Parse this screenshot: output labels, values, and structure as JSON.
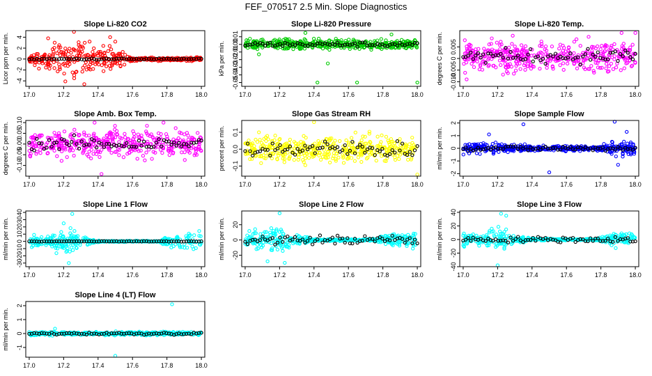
{
  "figure": {
    "title": "FEF_070517  2.5 Min. Slope Diagnostics"
  },
  "chart_data": [
    {
      "type": "scatter",
      "title": "Slope Li-820 CO2",
      "ylabel": "Licor ppm per min.",
      "color": "#ff0000",
      "xlim": [
        16.98,
        18.02
      ],
      "ylim": [
        -5,
        5.2
      ],
      "xticks": [
        17.0,
        17.2,
        17.4,
        17.6,
        17.8,
        18.0
      ],
      "yticks": [
        -4,
        -2,
        0,
        2,
        4
      ],
      "ytick_labels": [
        "-4",
        "-2",
        "0",
        "2",
        "4"
      ],
      "spread": [
        {
          "x": 17.0,
          "s": 0.3
        },
        {
          "x": 17.05,
          "s": 1.2
        },
        {
          "x": 17.15,
          "s": 2.4
        },
        {
          "x": 17.25,
          "s": 2.6
        },
        {
          "x": 17.35,
          "s": 2.0
        },
        {
          "x": 17.45,
          "s": 1.8
        },
        {
          "x": 17.55,
          "s": 1.2
        },
        {
          "x": 17.6,
          "s": 0.25
        },
        {
          "x": 18.0,
          "s": 0.25
        }
      ],
      "black_spread": 0.12,
      "outliers": [
        [
          17.26,
          5.0
        ],
        [
          17.32,
          -4.6
        ],
        [
          17.21,
          -4.1
        ],
        [
          17.11,
          3.8
        ],
        [
          17.47,
          4.0
        ],
        [
          17.5,
          3.2
        ]
      ]
    },
    {
      "type": "scatter",
      "title": "Slope Li-820 Pressure",
      "ylabel": "kPa per min.",
      "color": "#00cc00",
      "xlim": [
        16.98,
        18.02
      ],
      "ylim": [
        -0.055,
        0.018
      ],
      "xticks": [
        17.0,
        17.2,
        17.4,
        17.6,
        17.8,
        18.0
      ],
      "yticks": [
        -0.05,
        -0.04,
        -0.03,
        -0.02,
        -0.01,
        0.0,
        0.01
      ],
      "ytick_labels": [
        "-0.05",
        "-0.04",
        "-0.03",
        "-0.02",
        "-0.01",
        "0.00",
        "0.01"
      ],
      "spread": [
        {
          "x": 17.0,
          "s": 0.005
        },
        {
          "x": 18.0,
          "s": 0.005
        }
      ],
      "black_spread": 0.003,
      "outliers": [
        [
          17.35,
          0.015
        ],
        [
          17.42,
          -0.05
        ],
        [
          17.48,
          -0.025
        ],
        [
          17.65,
          -0.05
        ],
        [
          17.85,
          0.013
        ],
        [
          18.0,
          -0.05
        ],
        [
          17.08,
          -0.013
        ]
      ]
    },
    {
      "type": "scatter",
      "title": "Slope Li-820 Temp.",
      "ylabel": "degrees C per min.",
      "color": "#ff00ff",
      "xlim": [
        16.98,
        18.02
      ],
      "ylim": [
        -0.012,
        0.012
      ],
      "xticks": [
        17.0,
        17.2,
        17.4,
        17.6,
        17.8,
        18.0
      ],
      "yticks": [
        -0.01,
        -0.005,
        0.0,
        0.005
      ],
      "ytick_labels": [
        "-0.010",
        "-0.005",
        "0",
        "0.005"
      ],
      "spread": [
        {
          "x": 17.0,
          "s": 0.005
        },
        {
          "x": 18.0,
          "s": 0.005
        }
      ],
      "center": 0.001,
      "black_spread": 0.003,
      "outliers": [
        [
          18.0,
          0.011
        ],
        [
          17.92,
          0.011
        ],
        [
          17.02,
          -0.009
        ]
      ]
    },
    {
      "type": "scatter",
      "title": "Slope Amb. Box Temp.",
      "ylabel": "degrees C per min.",
      "color": "#ff00ff",
      "xlim": [
        16.98,
        18.02
      ],
      "ylim": [
        -0.15,
        0.11
      ],
      "xticks": [
        17.0,
        17.2,
        17.4,
        17.6,
        17.8,
        18.0
      ],
      "yticks": [
        -0.1,
        -0.05,
        0.0,
        0.05,
        0.1
      ],
      "ytick_labels": [
        "-0.10",
        "-0.05",
        "0.00",
        "0.05",
        "0.10"
      ],
      "spread": [
        {
          "x": 17.0,
          "s": 0.05
        },
        {
          "x": 18.0,
          "s": 0.05
        }
      ],
      "black_spread": 0.03,
      "outliers": [
        [
          17.78,
          0.1
        ],
        [
          17.42,
          -0.14
        ],
        [
          17.38,
          0.1
        ]
      ]
    },
    {
      "type": "scatter",
      "title": "Slope Gas Stream RH",
      "ylabel": "percent per min.",
      "color": "#ffff00",
      "xlim": [
        16.98,
        18.02
      ],
      "ylim": [
        -0.16,
        0.17
      ],
      "xticks": [
        17.0,
        17.2,
        17.4,
        17.6,
        17.8,
        18.0
      ],
      "yticks": [
        -0.1,
        0.0,
        0.1
      ],
      "ytick_labels": [
        "-0.1",
        "0.0",
        "0.1"
      ],
      "spread": [
        {
          "x": 17.0,
          "s": 0.06
        },
        {
          "x": 18.0,
          "s": 0.06
        }
      ],
      "black_spread": 0.05,
      "outliers": [
        [
          17.4,
          0.16
        ],
        [
          18.0,
          -0.15
        ],
        [
          17.08,
          0.1
        ]
      ]
    },
    {
      "type": "scatter",
      "title": "Slope Sample Flow",
      "ylabel": "ml/min per min.",
      "color": "#0000ff",
      "xlim": [
        16.98,
        18.02
      ],
      "ylim": [
        -2.2,
        2.2
      ],
      "xticks": [
        17.0,
        17.2,
        17.4,
        17.6,
        17.8,
        18.0
      ],
      "yticks": [
        -2,
        -1,
        0,
        1,
        2
      ],
      "ytick_labels": [
        "-2",
        "-1",
        "0",
        "1",
        "2"
      ],
      "spread": [
        {
          "x": 17.0,
          "s": 0.4
        },
        {
          "x": 17.2,
          "s": 0.3
        },
        {
          "x": 17.4,
          "s": 0.15
        },
        {
          "x": 17.8,
          "s": 0.15
        },
        {
          "x": 17.9,
          "s": 0.5
        },
        {
          "x": 18.0,
          "s": 0.5
        }
      ],
      "black_spread": 0.2,
      "outliers": [
        [
          17.35,
          1.9
        ],
        [
          17.88,
          2.1
        ],
        [
          17.5,
          -1.9
        ],
        [
          17.9,
          -1.3
        ],
        [
          17.95,
          1.3
        ],
        [
          17.15,
          1.1
        ]
      ]
    },
    {
      "type": "scatter",
      "title": "Slope Line 1 Flow",
      "ylabel": "ml/min per min.",
      "color": "#00ffff",
      "xlim": [
        16.98,
        18.02
      ],
      "ylim": [
        -35,
        42
      ],
      "xticks": [
        17.0,
        17.2,
        17.4,
        17.6,
        17.8,
        18.0
      ],
      "yticks": [
        -30,
        -20,
        -10,
        0,
        10,
        20,
        30,
        40
      ],
      "ytick_labels": [
        "-30",
        "-20",
        "-10",
        "0",
        "10",
        "20",
        "30",
        "40"
      ],
      "spread": [
        {
          "x": 17.0,
          "s": 8
        },
        {
          "x": 17.1,
          "s": 5
        },
        {
          "x": 17.22,
          "s": 15
        },
        {
          "x": 17.3,
          "s": 5
        },
        {
          "x": 17.4,
          "s": 0.8
        },
        {
          "x": 17.75,
          "s": 0.8
        },
        {
          "x": 17.85,
          "s": 10
        },
        {
          "x": 17.95,
          "s": 12
        },
        {
          "x": 18.0,
          "s": 10
        }
      ],
      "black_spread": 0.3,
      "outliers": [
        [
          17.25,
          38
        ],
        [
          17.23,
          -30
        ],
        [
          17.2,
          25
        ]
      ]
    },
    {
      "type": "scatter",
      "title": "Slope Line 2 Flow",
      "ylabel": "ml/min per min.",
      "color": "#00ffff",
      "xlim": [
        16.98,
        18.02
      ],
      "ylim": [
        -35,
        38
      ],
      "xticks": [
        17.0,
        17.2,
        17.4,
        17.6,
        17.8,
        18.0
      ],
      "yticks": [
        -20,
        0,
        20
      ],
      "ytick_labels": [
        "-20",
        "0",
        "20"
      ],
      "spread": [
        {
          "x": 17.0,
          "s": 8
        },
        {
          "x": 17.1,
          "s": 8
        },
        {
          "x": 17.2,
          "s": 14
        },
        {
          "x": 17.3,
          "s": 6
        },
        {
          "x": 17.4,
          "s": 1
        },
        {
          "x": 17.75,
          "s": 1
        },
        {
          "x": 17.85,
          "s": 8
        },
        {
          "x": 17.95,
          "s": 12
        },
        {
          "x": 18.0,
          "s": 10
        }
      ],
      "black_spread": 6,
      "outliers": [
        [
          17.2,
          35
        ],
        [
          17.23,
          -30
        ],
        [
          17.13,
          -28
        ]
      ]
    },
    {
      "type": "scatter",
      "title": "Slope Line 3 Flow",
      "ylabel": "ml/min per min.",
      "color": "#00ffff",
      "xlim": [
        16.98,
        18.02
      ],
      "ylim": [
        -40,
        42
      ],
      "xticks": [
        17.0,
        17.2,
        17.4,
        17.6,
        17.8,
        18.0
      ],
      "yticks": [
        -40,
        -20,
        0,
        20,
        40
      ],
      "ytick_labels": [
        "-40",
        "-20",
        "0",
        "20",
        "40"
      ],
      "spread": [
        {
          "x": 17.0,
          "s": 10
        },
        {
          "x": 17.1,
          "s": 6
        },
        {
          "x": 17.2,
          "s": 15
        },
        {
          "x": 17.3,
          "s": 5
        },
        {
          "x": 17.4,
          "s": 1
        },
        {
          "x": 17.75,
          "s": 1
        },
        {
          "x": 17.85,
          "s": 8
        },
        {
          "x": 17.95,
          "s": 10
        },
        {
          "x": 18.0,
          "s": 10
        }
      ],
      "black_spread": 4,
      "outliers": [
        [
          17.22,
          38
        ],
        [
          17.2,
          -38
        ],
        [
          17.25,
          35
        ]
      ]
    },
    {
      "type": "scatter",
      "title": "Slope Line 4 (LT) Flow",
      "ylabel": "ml/min per min.",
      "color": "#00ffff",
      "xlim": [
        16.98,
        18.02
      ],
      "ylim": [
        -1.7,
        2.3
      ],
      "xticks": [
        17.0,
        17.2,
        17.4,
        17.6,
        17.8,
        18.0
      ],
      "yticks": [
        -1,
        0,
        1,
        2
      ],
      "ytick_labels": [
        "-1",
        "0",
        "1",
        "2"
      ],
      "spread": [
        {
          "x": 17.0,
          "s": 0.1
        },
        {
          "x": 18.0,
          "s": 0.1
        }
      ],
      "black_spread": 0.08,
      "outliers": [
        [
          17.83,
          2.1
        ],
        [
          17.5,
          -1.6
        ],
        [
          17.15,
          0.35
        ]
      ]
    }
  ]
}
